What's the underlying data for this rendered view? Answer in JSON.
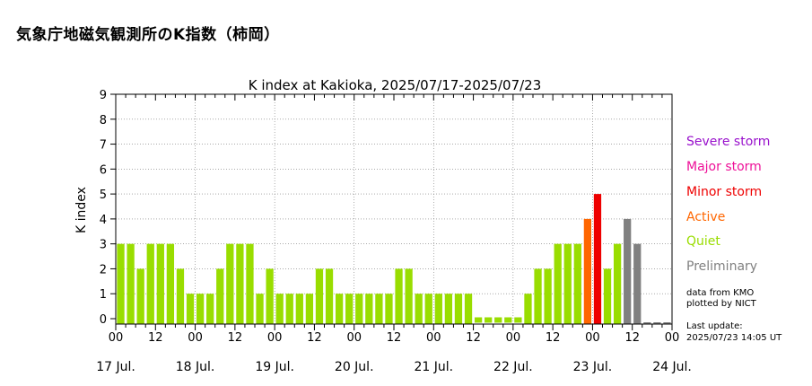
{
  "page_title": "気象庁地磁気観測所のK指数（柿岡）",
  "chart_data": {
    "type": "bar",
    "title": "K index at Kakioka, 2025/07/17-2025/07/23",
    "ylabel": "K index",
    "ylim": [
      0,
      9
    ],
    "yticks": [
      0,
      1,
      2,
      3,
      4,
      5,
      6,
      7,
      8,
      9
    ],
    "hour_tick_labels": [
      "00",
      "12",
      "00",
      "12",
      "00",
      "12",
      "00",
      "12",
      "00",
      "12",
      "00",
      "12",
      "00",
      "12",
      "00"
    ],
    "day_labels": [
      "17 Jul.",
      "18 Jul.",
      "19 Jul.",
      "20 Jul.",
      "21 Jul.",
      "22 Jul.",
      "23 Jul.",
      "24 Jul."
    ],
    "interval_hours": 3,
    "values": [
      3,
      3,
      2,
      3,
      3,
      3,
      2,
      1,
      1,
      1,
      2,
      3,
      3,
      3,
      1,
      2,
      1,
      1,
      1,
      1,
      2,
      2,
      1,
      1,
      1,
      1,
      1,
      1,
      2,
      2,
      1,
      1,
      1,
      1,
      1,
      1,
      0,
      0,
      0,
      0,
      0,
      1,
      2,
      2,
      3,
      3,
      3,
      4,
      5,
      2,
      3,
      4,
      3
    ],
    "statuses": [
      "q",
      "q",
      "q",
      "q",
      "q",
      "q",
      "q",
      "q",
      "q",
      "q",
      "q",
      "q",
      "q",
      "q",
      "q",
      "q",
      "q",
      "q",
      "q",
      "q",
      "q",
      "q",
      "q",
      "q",
      "q",
      "q",
      "q",
      "q",
      "q",
      "q",
      "q",
      "q",
      "q",
      "q",
      "q",
      "q",
      "q",
      "q",
      "q",
      "q",
      "q",
      "q",
      "q",
      "q",
      "q",
      "q",
      "q",
      "a",
      "m",
      "q",
      "q",
      "p",
      "p"
    ],
    "colors": {
      "quiet": "#99dd00",
      "active": "#ff6600",
      "minor": "#ee0000",
      "major": "#ee1199",
      "severe": "#9911cc",
      "preliminary": "#808080",
      "pending": "#808080"
    }
  },
  "legend": {
    "severe": "Severe storm",
    "major": "Major storm",
    "minor": "Minor storm",
    "active": "Active",
    "quiet": "Quiet",
    "preliminary": "Preliminary"
  },
  "source_line1": "data from KMO",
  "source_line2": "plotted by NICT",
  "update_label": "Last update:",
  "update_time": "2025/07/23 14:05 UT"
}
